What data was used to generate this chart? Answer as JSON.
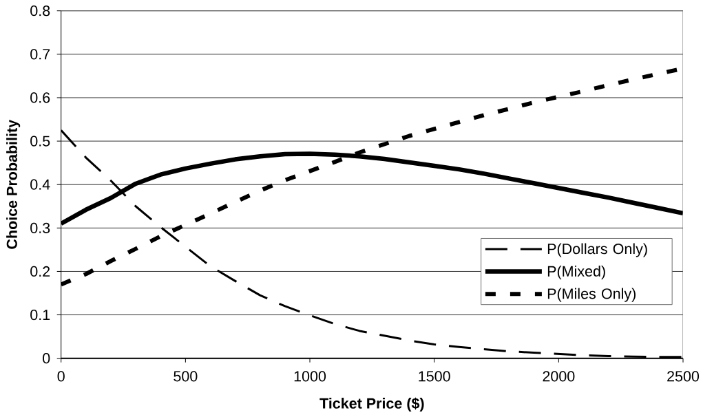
{
  "chart_data": {
    "type": "line",
    "xlabel": "Ticket Price ($)",
    "ylabel": "Choice Probability",
    "x": [
      0,
      100,
      200,
      300,
      400,
      500,
      600,
      700,
      800,
      900,
      1000,
      1100,
      1200,
      1300,
      1400,
      1500,
      1600,
      1700,
      1800,
      1900,
      2000,
      2100,
      2200,
      2300,
      2400,
      2500
    ],
    "series": [
      {
        "name": "P(Dollars Only)",
        "color": "#000000",
        "line_style": "dashed",
        "values": [
          0.525,
          0.462,
          0.409,
          0.35,
          0.302,
          0.257,
          0.212,
          0.178,
          0.145,
          0.12,
          0.099,
          0.079,
          0.063,
          0.052,
          0.041,
          0.032,
          0.026,
          0.021,
          0.016,
          0.013,
          0.01,
          0.007,
          0.005,
          0.004,
          0.003,
          0.003
        ]
      },
      {
        "name": "P(Mixed)",
        "color": "#000000",
        "line_style": "solid",
        "values": [
          0.31,
          0.342,
          0.369,
          0.402,
          0.423,
          0.437,
          0.448,
          0.458,
          0.465,
          0.47,
          0.471,
          0.469,
          0.465,
          0.459,
          0.451,
          0.443,
          0.435,
          0.425,
          0.414,
          0.403,
          0.392,
          0.381,
          0.37,
          0.358,
          0.346,
          0.334
        ]
      },
      {
        "name": "P(Miles Only)",
        "color": "#000000",
        "line_style": "dashed",
        "values": [
          0.17,
          0.194,
          0.224,
          0.252,
          0.281,
          0.307,
          0.333,
          0.36,
          0.386,
          0.41,
          0.431,
          0.452,
          0.474,
          0.493,
          0.512,
          0.528,
          0.544,
          0.56,
          0.574,
          0.589,
          0.602,
          0.615,
          0.629,
          0.642,
          0.655,
          0.667
        ]
      }
    ],
    "xlim": [
      0,
      2500
    ],
    "ylim": [
      0,
      0.8
    ],
    "xticks": [
      0,
      500,
      1000,
      1500,
      2000,
      2500
    ],
    "yticks": [
      0,
      0.1,
      0.2,
      0.3,
      0.4,
      0.5,
      0.6,
      0.7,
      0.8
    ],
    "grid": "y",
    "legend": "bottom right"
  }
}
